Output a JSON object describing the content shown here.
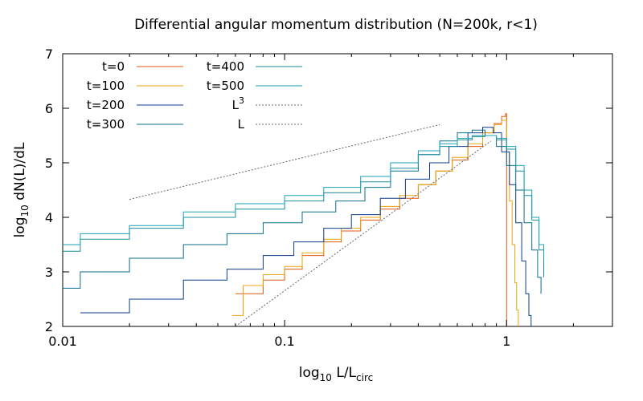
{
  "chart_data": {
    "type": "line",
    "title": "Differential angular momentum distribution (N=200k, r<1)",
    "xlabel": {
      "main": "log",
      "sub": "10",
      "mid": " L/L",
      "sub2": "circ"
    },
    "ylabel": {
      "main": "log",
      "sub": "10",
      "rest": " dN(L)/dL"
    },
    "x_scale": "log",
    "xlim": [
      0.01,
      3.0
    ],
    "ylim": [
      2,
      7
    ],
    "x_ticks": [
      {
        "value": 0.01,
        "label": "0.01"
      },
      {
        "value": 0.1,
        "label": "0.1"
      },
      {
        "value": 1,
        "label": "1"
      }
    ],
    "y_ticks": [
      {
        "value": 2,
        "label": "2"
      },
      {
        "value": 3,
        "label": "3"
      },
      {
        "value": 4,
        "label": "4"
      },
      {
        "value": 5,
        "label": "5"
      },
      {
        "value": 6,
        "label": "6"
      },
      {
        "value": 7,
        "label": "7"
      }
    ],
    "legend_position": "top-left",
    "series": [
      {
        "name": "t=0",
        "color": "#e0580c",
        "style": "step",
        "x": [
          0.06,
          0.08,
          0.1,
          0.12,
          0.15,
          0.18,
          0.22,
          0.27,
          0.33,
          0.4,
          0.48,
          0.57,
          0.67,
          0.78,
          0.88,
          0.95,
          0.99,
          1.0
        ],
        "y": [
          2.6,
          2.85,
          3.05,
          3.3,
          3.55,
          3.75,
          3.95,
          4.15,
          4.35,
          4.6,
          4.85,
          5.05,
          5.3,
          5.55,
          5.72,
          5.85,
          5.9,
          2.0
        ]
      },
      {
        "name": "t=100",
        "color": "#e8a40c",
        "style": "step",
        "x": [
          0.058,
          0.065,
          0.08,
          0.1,
          0.12,
          0.15,
          0.18,
          0.22,
          0.27,
          0.33,
          0.4,
          0.48,
          0.57,
          0.67,
          0.78,
          0.88,
          0.95,
          1.0,
          1.03,
          1.06,
          1.09,
          1.11,
          1.13
        ],
        "y": [
          2.2,
          2.75,
          2.95,
          3.1,
          3.35,
          3.6,
          3.8,
          4.0,
          4.2,
          4.4,
          4.6,
          4.85,
          5.1,
          5.35,
          5.55,
          5.7,
          5.78,
          5.2,
          4.3,
          3.5,
          2.8,
          2.3,
          2.0
        ]
      },
      {
        "name": "t=200",
        "color": "#0c3c8c",
        "style": "step",
        "x": [
          0.012,
          0.02,
          0.035,
          0.055,
          0.08,
          0.11,
          0.15,
          0.2,
          0.27,
          0.35,
          0.45,
          0.55,
          0.67,
          0.78,
          0.87,
          0.95,
          1.03,
          1.1,
          1.17,
          1.22,
          1.26,
          1.29
        ],
        "y": [
          2.25,
          2.5,
          2.85,
          3.05,
          3.3,
          3.55,
          3.8,
          4.05,
          4.35,
          4.7,
          5.0,
          5.3,
          5.55,
          5.65,
          5.55,
          5.2,
          4.6,
          3.9,
          3.2,
          2.6,
          2.2,
          2.0
        ]
      },
      {
        "name": "t=300",
        "color": "#0c6e8c",
        "style": "step",
        "x": [
          0.01,
          0.012,
          0.02,
          0.035,
          0.055,
          0.08,
          0.12,
          0.17,
          0.23,
          0.3,
          0.4,
          0.5,
          0.6,
          0.7,
          0.8,
          0.9,
          1.0,
          1.1,
          1.2,
          1.3,
          1.38,
          1.43
        ],
        "y": [
          2.7,
          3.0,
          3.25,
          3.5,
          3.7,
          3.9,
          4.1,
          4.3,
          4.55,
          4.85,
          5.15,
          5.4,
          5.55,
          5.6,
          5.5,
          5.3,
          4.95,
          4.5,
          3.9,
          3.4,
          2.9,
          2.6
        ]
      },
      {
        "name": "t=400",
        "color": "#1a8c9e",
        "style": "step",
        "x": [
          0.01,
          0.012,
          0.02,
          0.035,
          0.06,
          0.1,
          0.15,
          0.22,
          0.3,
          0.4,
          0.5,
          0.6,
          0.7,
          0.8,
          0.9,
          1.0,
          1.1,
          1.2,
          1.3,
          1.4,
          1.47
        ],
        "y": [
          3.38,
          3.6,
          3.8,
          4.0,
          4.15,
          4.3,
          4.45,
          4.65,
          4.9,
          5.15,
          5.3,
          5.42,
          5.48,
          5.5,
          5.42,
          5.25,
          4.85,
          4.4,
          3.95,
          3.4,
          2.9
        ]
      },
      {
        "name": "t=500",
        "color": "#1aa3b8",
        "style": "step",
        "x": [
          0.01,
          0.012,
          0.02,
          0.035,
          0.06,
          0.1,
          0.15,
          0.22,
          0.3,
          0.4,
          0.5,
          0.6,
          0.7,
          0.8,
          0.9,
          1.0,
          1.1,
          1.2,
          1.3,
          1.4,
          1.47
        ],
        "y": [
          3.5,
          3.7,
          3.85,
          4.1,
          4.25,
          4.4,
          4.55,
          4.75,
          5.0,
          5.22,
          5.35,
          5.45,
          5.5,
          5.5,
          5.45,
          5.3,
          4.95,
          4.5,
          4.0,
          3.5,
          3.2
        ]
      },
      {
        "name": "L",
        "sup": "3",
        "color": "#666666",
        "style": "dotted",
        "x": [
          0.06,
          0.85
        ],
        "y": [
          2.0,
          5.4
        ]
      },
      {
        "name": "L",
        "color": "#666666",
        "style": "dotted",
        "x": [
          0.02,
          0.5
        ],
        "y": [
          4.33,
          5.7
        ]
      }
    ]
  }
}
